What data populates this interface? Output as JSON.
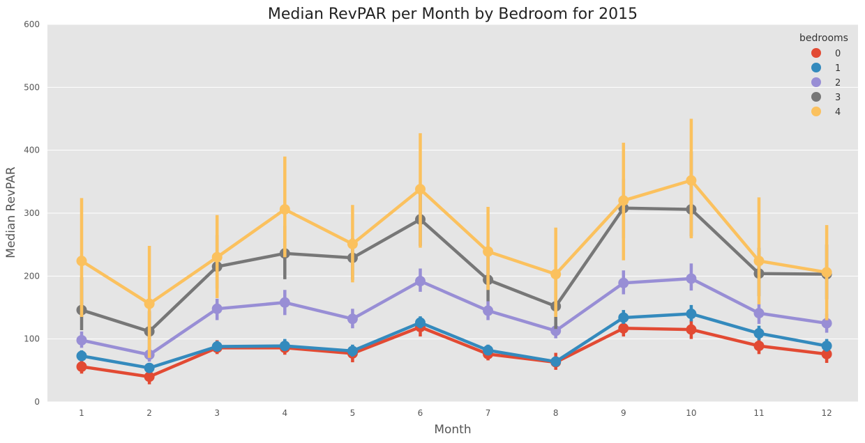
{
  "chart_data": {
    "type": "line",
    "title": "Median RevPAR per Month by Bedroom for 2015",
    "xlabel": "Month",
    "ylabel": "Median RevPAR",
    "categories": [
      "1",
      "2",
      "3",
      "4",
      "5",
      "6",
      "7",
      "8",
      "9",
      "10",
      "11",
      "12"
    ],
    "ylim": [
      0,
      600
    ],
    "yticks": [
      0,
      100,
      200,
      300,
      400,
      500,
      600
    ],
    "grid": true,
    "legend": {
      "title": "bedrooms",
      "placement": "top-right"
    },
    "series": [
      {
        "name": "0",
        "color": "#E24A33",
        "values": [
          56,
          40,
          86,
          86,
          77,
          119,
          76,
          63,
          117,
          115,
          89,
          76
        ],
        "ci_low": [
          45,
          28,
          76,
          75,
          63,
          104,
          66,
          51,
          104,
          100,
          76,
          62
        ],
        "ci_high": [
          65,
          50,
          98,
          98,
          89,
          129,
          87,
          78,
          130,
          130,
          101,
          89
        ]
      },
      {
        "name": "1",
        "color": "#348ABD",
        "values": [
          73,
          54,
          88,
          89,
          81,
          126,
          82,
          64,
          134,
          140,
          109,
          89
        ],
        "ci_low": [
          65,
          46,
          80,
          81,
          72,
          117,
          74,
          57,
          124,
          128,
          98,
          80
        ],
        "ci_high": [
          82,
          61,
          97,
          100,
          91,
          136,
          91,
          70,
          146,
          154,
          121,
          100
        ]
      },
      {
        "name": "2",
        "color": "#988ED5",
        "values": [
          98,
          75,
          148,
          158,
          132,
          192,
          145,
          113,
          189,
          196,
          141,
          125
        ],
        "ci_low": [
          86,
          64,
          130,
          138,
          117,
          175,
          130,
          101,
          171,
          177,
          124,
          110
        ],
        "ci_high": [
          112,
          86,
          164,
          178,
          148,
          212,
          160,
          126,
          209,
          220,
          156,
          140
        ]
      },
      {
        "name": "3",
        "color": "#777777",
        "values": [
          146,
          112,
          215,
          236,
          229,
          290,
          194,
          152,
          308,
          306,
          204,
          203
        ],
        "ci_low": [
          114,
          84,
          180,
          195,
          194,
          248,
          160,
          116,
          260,
          263,
          168,
          163
        ],
        "ci_high": [
          198,
          144,
          265,
          280,
          260,
          344,
          236,
          202,
          355,
          398,
          245,
          250
        ]
      },
      {
        "name": "4",
        "color": "#FBC15E",
        "values": [
          224,
          156,
          230,
          306,
          251,
          338,
          239,
          203,
          320,
          352,
          224,
          206
        ],
        "ci_low": [
          135,
          70,
          165,
          230,
          190,
          245,
          178,
          135,
          225,
          260,
          155,
          130
        ],
        "ci_high": [
          324,
          248,
          297,
          390,
          313,
          427,
          310,
          277,
          412,
          450,
          325,
          281
        ]
      }
    ]
  }
}
